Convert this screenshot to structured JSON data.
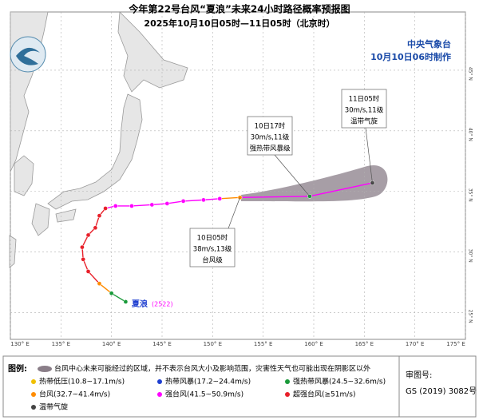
{
  "header": {
    "title": "今年第22号台风“夏浪”未来24小时路径概率预报图",
    "subtitle": "2025年10月10日05时—11日05时（北京时）",
    "agency": "中央气象台",
    "issued": "10月10日06时制作"
  },
  "map": {
    "lonlim": [
      130,
      175
    ],
    "latlim": [
      22.8,
      49.8
    ],
    "lon_ticks": [
      {
        "value": 130,
        "label": "130° E"
      },
      {
        "value": 135,
        "label": "135° E"
      },
      {
        "value": 140,
        "label": "140° E"
      },
      {
        "value": 145,
        "label": "145° E"
      },
      {
        "value": 150,
        "label": "150° E"
      },
      {
        "value": 155,
        "label": "155° E"
      },
      {
        "value": 160,
        "label": "160° E"
      },
      {
        "value": 165,
        "label": "165° E"
      },
      {
        "value": 170,
        "label": "170° E"
      },
      {
        "value": 175,
        "label": "175° E"
      }
    ],
    "lat_ticks": [
      {
        "value": 25,
        "label": "25° N"
      },
      {
        "value": 30,
        "label": "30° N"
      },
      {
        "value": 35,
        "label": "35° N"
      },
      {
        "value": 40,
        "label": "40° N"
      },
      {
        "value": 45,
        "label": "45° N"
      }
    ]
  },
  "storm": {
    "name": "夏浪",
    "code": "(2522)",
    "track": [
      {
        "lon": 141.4,
        "lat": 25.9,
        "level": 2
      },
      {
        "lon": 140.0,
        "lat": 26.6,
        "level": 2
      },
      {
        "lon": 138.8,
        "lat": 27.4,
        "level": 3
      },
      {
        "lon": 137.7,
        "lat": 28.4,
        "level": 5
      },
      {
        "lon": 137.2,
        "lat": 29.4,
        "level": 5
      },
      {
        "lon": 137.1,
        "lat": 30.4,
        "level": 5
      },
      {
        "lon": 137.7,
        "lat": 31.4,
        "level": 5
      },
      {
        "lon": 138.4,
        "lat": 32.0,
        "level": 5
      },
      {
        "lon": 138.8,
        "lat": 33.0,
        "level": 5
      },
      {
        "lon": 139.4,
        "lat": 33.6,
        "level": 5
      },
      {
        "lon": 140.4,
        "lat": 33.8,
        "level": 4
      },
      {
        "lon": 142.0,
        "lat": 33.8,
        "level": 4
      },
      {
        "lon": 144.0,
        "lat": 33.9,
        "level": 4
      },
      {
        "lon": 145.5,
        "lat": 34.0,
        "level": 4
      },
      {
        "lon": 147.1,
        "lat": 34.2,
        "level": 4
      },
      {
        "lon": 149.1,
        "lat": 34.3,
        "level": 4
      },
      {
        "lon": 150.7,
        "lat": 34.4,
        "level": 4
      }
    ],
    "forecast": [
      {
        "lon": 152.7,
        "lat": 34.5,
        "level": 3,
        "lines": [
          "10日05时",
          "38m/s,13级",
          "台风级"
        ]
      },
      {
        "lon": 159.6,
        "lat": 34.6,
        "level": 2,
        "lines": [
          "10日17时",
          "30m/s,11级",
          "强热带风暴级"
        ]
      },
      {
        "lon": 165.8,
        "lat": 35.7,
        "level": 6,
        "lines": [
          "11日05时",
          "30m/s,11级",
          "温带气旋"
        ]
      }
    ]
  },
  "legend": {
    "title": "图例:",
    "note": "台风中心未来可能经过的区域，并不表示台风大小及影响范围，灾害性天气也可能出现在阴影区以外",
    "items": [
      {
        "name": "热带低压(10.8~17.1m/s)",
        "color": "#f0c000"
      },
      {
        "name": "热带风暴(17.2~24.4m/s)",
        "color": "#1f3fd0"
      },
      {
        "name": "强热带风暴(24.5~32.6m/s)",
        "color": "#1a9a3a"
      },
      {
        "name": "台风(32.7~41.4m/s)",
        "color": "#ff8c00"
      },
      {
        "name": "强台风(41.5~50.9m/s)",
        "color": "#ff00ff"
      },
      {
        "name": "超强台风(≥51m/s)",
        "color": "#e8202a"
      },
      {
        "name": "温带气旋",
        "color": "#444444"
      }
    ],
    "review_label": "审图号:",
    "review_code": "GS (2019) 3082号"
  }
}
